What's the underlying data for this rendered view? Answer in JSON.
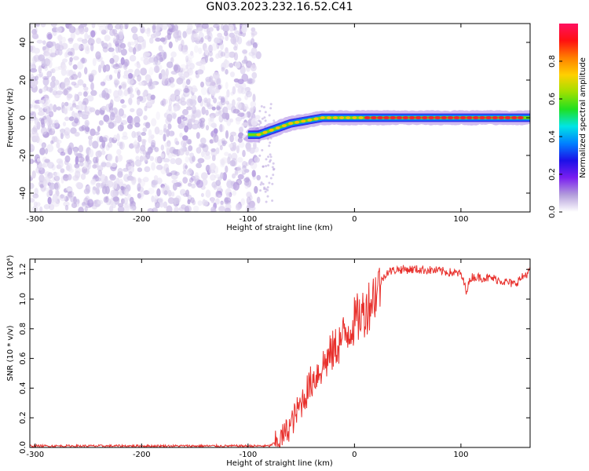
{
  "title": "GN03.2023.232.16.52.C41",
  "colors": {
    "snr_line": "#e8302c",
    "colorbar": [
      "#ffffff",
      "#b39ddb",
      "#7a1ff0",
      "#1c10e8",
      "#0080ff",
      "#00e5e5",
      "#20e020",
      "#a0e000",
      "#ffd000",
      "#ff8000",
      "#ff1010",
      "#ff1060"
    ]
  },
  "chart_data": [
    {
      "type": "heatmap",
      "title": "GN03.2023.232.16.52.C41",
      "xlabel": "Height of straight line (km)",
      "ylabel": "Frequency (Hz)",
      "xlim": [
        -305,
        165
      ],
      "ylim": [
        -50,
        50
      ],
      "xticks": [
        "-300",
        "-200",
        "-100",
        "0",
        "100"
      ],
      "xtick_values": [
        -300,
        -200,
        -100,
        0,
        100
      ],
      "yticks": [
        "-40",
        "-20",
        "0",
        "20",
        "40"
      ],
      "ytick_values": [
        -40,
        -20,
        0,
        20,
        40
      ],
      "noise_region_x": [
        -305,
        -90
      ],
      "signal_track": {
        "x": [
          -100,
          -90,
          -80,
          -70,
          -60,
          -50,
          -40,
          -30,
          -20,
          -10,
          0,
          10,
          20,
          60,
          100,
          165
        ],
        "y": [
          -9,
          -9,
          -7,
          -5,
          -3,
          -2,
          -1,
          0,
          0,
          0,
          0,
          0,
          0,
          0,
          0,
          0
        ]
      },
      "colorbar": {
        "label": "Normalized spectral amplitude",
        "ticks": [
          "0.0",
          "0.2",
          "0.4",
          "0.6",
          "0.8"
        ],
        "tick_values": [
          0.0,
          0.2,
          0.4,
          0.6,
          0.8
        ],
        "range": [
          0,
          1
        ]
      }
    },
    {
      "type": "line",
      "xlabel": "Height of straight line (km)",
      "ylabel": "SNR (10 * v/v)",
      "y_scale_label": "(x10⁴)",
      "xlim": [
        -305,
        165
      ],
      "ylim": [
        0,
        1.27
      ],
      "xticks": [
        "-300",
        "-200",
        "-100",
        "0",
        "100"
      ],
      "xtick_values": [
        -300,
        -200,
        -100,
        0,
        100
      ],
      "yticks": [
        "0.0",
        "0.2",
        "0.4",
        "0.6",
        "0.8",
        "1.0",
        "1.2"
      ],
      "ytick_values": [
        0.0,
        0.2,
        0.4,
        0.6,
        0.8,
        1.0,
        1.2
      ],
      "series": [
        {
          "x": [
            -305,
            -250,
            -200,
            -150,
            -100,
            -80,
            -70,
            -60,
            -50,
            -40,
            -30,
            -20,
            -10,
            0,
            10,
            20,
            25,
            30,
            40,
            60,
            80,
            100,
            105,
            110,
            130,
            150,
            165
          ],
          "values": [
            0.01,
            0.01,
            0.01,
            0.01,
            0.01,
            0.01,
            0.05,
            0.15,
            0.3,
            0.45,
            0.55,
            0.65,
            0.75,
            0.85,
            0.92,
            1.05,
            1.12,
            1.18,
            1.2,
            1.2,
            1.19,
            1.17,
            1.06,
            1.15,
            1.14,
            1.1,
            1.19
          ]
        }
      ]
    }
  ]
}
